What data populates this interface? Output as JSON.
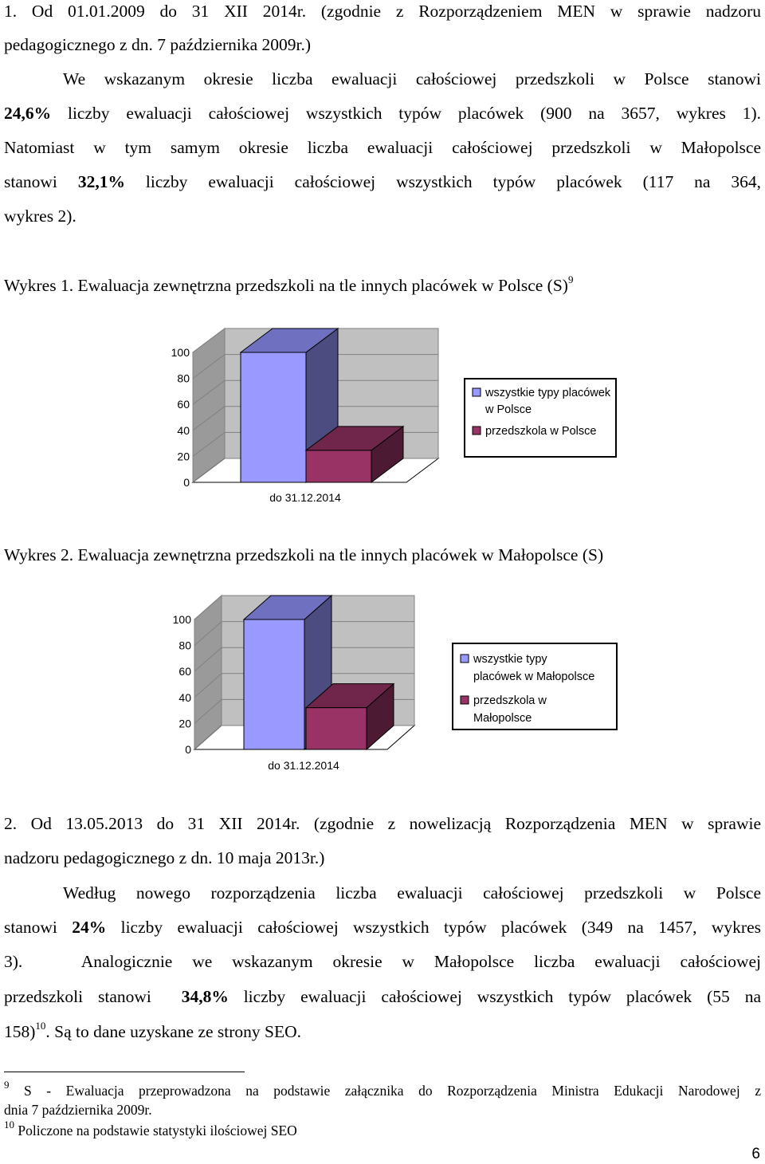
{
  "section1": {
    "heading_l1": "1. Od 01.01.2009 do 31 XII 2014r. (zgodnie z Rozporządzeniem MEN w sprawie nadzoru",
    "heading_l2": "pedagogicznego z dn. 7 października 2009r.)",
    "p1_l1": "We wskazanym okresie liczba ewaluacji całościowej przedszkoli w Polsce stanowi",
    "p1_l2_pct": "24,6%",
    "p1_l2_rest": " liczby ewaluacji całościowej wszystkich typów placówek (900 na 3657, wykres 1).",
    "p1_l3": "Natomiast w tym samym okresie liczba ewaluacji całościowej przedszkoli w Małopolsce",
    "p1_l4_a": "stanowi ",
    "p1_l4_pct": "32,1%",
    "p1_l4_rest": " liczby ewaluacji całościowej wszystkich typów placówek (117 na 364,",
    "p1_l5": "wykres 2)."
  },
  "chart1_caption": {
    "text": "Wykres 1. Ewaluacja zewnętrzna przedszkoli na tle innych placówek w Polsce (S)",
    "fn_ref": "9"
  },
  "chart2_caption": {
    "text": "Wykres 2. Ewaluacja zewnętrzna przedszkoli na tle innych placówek w Małopolsce (S)"
  },
  "chart_data": [
    {
      "type": "bar",
      "categories": [
        "do 31.12.2014"
      ],
      "series": [
        {
          "name": "wszystkie typy placówek w Polsce",
          "values": [
            100
          ]
        },
        {
          "name": "przedszkola w Polsce",
          "values": [
            24.6
          ]
        }
      ],
      "ylim": [
        0,
        100
      ],
      "yticks": [
        "0",
        "20",
        "40",
        "60",
        "80",
        "100"
      ],
      "grid": true,
      "legend": "right",
      "legend_lines": [
        [
          "wszystkie typy placówek",
          "w Polsce"
        ],
        [
          "przedszkola w Polsce"
        ]
      ],
      "colors": {
        "front": [
          "#9999ff",
          "#993366"
        ],
        "side": [
          "#4c4c80",
          "#4d1a33"
        ],
        "top": [
          "#7070c0",
          "#70254a"
        ]
      }
    },
    {
      "type": "bar",
      "categories": [
        "do 31.12.2014"
      ],
      "series": [
        {
          "name": "wszystkie typy placówek w Małopolsce",
          "values": [
            100
          ]
        },
        {
          "name": "przedszkola w Małopolsce",
          "values": [
            32.1
          ]
        }
      ],
      "ylim": [
        0,
        100
      ],
      "yticks": [
        "0",
        "20",
        "40",
        "60",
        "80",
        "100"
      ],
      "grid": true,
      "legend": "right",
      "legend_lines": [
        [
          "wszystkie typy",
          "placówek w Małopolsce"
        ],
        [
          "przedszkola w",
          "Małopolsce"
        ]
      ],
      "colors": {
        "front": [
          "#9999ff",
          "#993366"
        ],
        "side": [
          "#4c4c80",
          "#4d1a33"
        ],
        "top": [
          "#7070c0",
          "#70254a"
        ]
      }
    }
  ],
  "section2": {
    "heading_l1": "2. Od 13.05.2013 do 31 XII 2014r. (zgodnie z nowelizacją Rozporządzenia MEN w sprawie",
    "heading_l2": "nadzoru pedagogicznego z dn. 10 maja 2013r.)",
    "p_l1": "Według nowego rozporządzenia liczba ewaluacji całościowej przedszkoli w Polsce",
    "p_l2_a": "stanowi ",
    "p_l2_pct": "24%",
    "p_l2_rest": " liczby ewaluacji całościowej wszystkich typów placówek (349 na 1457, wykres",
    "p_l3": "3).   Analogicznie we wskazanym okresie w Małopolsce liczba ewaluacji całościowej",
    "p_l4_a": "przedszkoli stanowi  ",
    "p_l4_pct": "34,8%",
    "p_l4_rest": " liczby ewaluacji całościowej wszystkich typów placówek (55 na",
    "p_l5_a": "158)",
    "p_l5_sup": "10",
    "p_l5_rest": ". Są to dane uzyskane ze strony SEO."
  },
  "footnotes": {
    "fn9_num": "9",
    "fn9_l1": " S - Ewaluacja przeprowadzona na podstawie załącznika do Rozporządzenia Ministra Edukacji Narodowej z",
    "fn9_l2": "dnia 7 października 2009r.",
    "fn10_num": "10",
    "fn10_text": " Policzone na podstawie statystyki ilościowej SEO"
  },
  "page_number": "6"
}
